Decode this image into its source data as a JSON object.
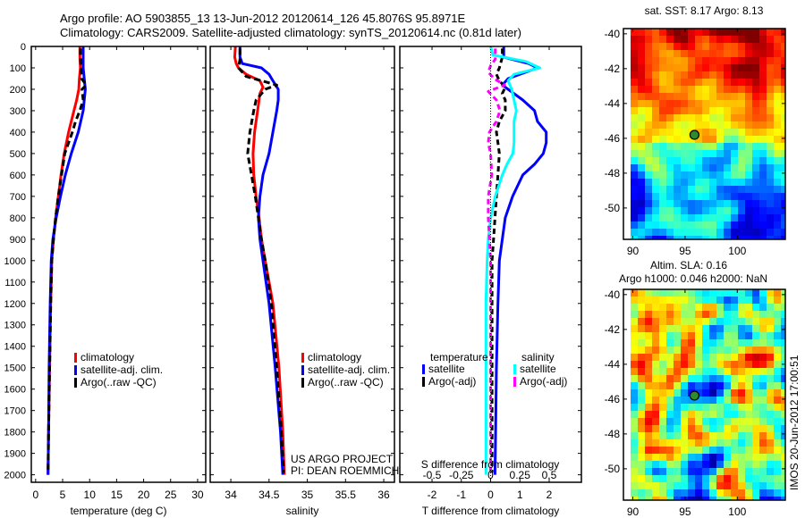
{
  "header": {
    "title_line1": "Argo profile: AO 5903855_13 13-Jun-2012 20120614_126 45.8076S 95.8971E",
    "title_line2": "Climatology: CARS2009. Satellite-adjusted climatology: synTS_20120614.nc (0.81d later)"
  },
  "credits": {
    "project": "US ARGO PROJECT",
    "pi": "PI: DEAN ROEMMICH",
    "stamp": "IMOS 20-Jun-2012 17:00:51"
  },
  "colors": {
    "climatology": "#ff0000",
    "satellite": "#0000ff",
    "argo": "#000000",
    "sal_satellite": "#00ffff",
    "sal_argo": "#ff00ff"
  },
  "chart_data": [
    {
      "type": "line",
      "name": "temperature-profile",
      "xlabel": "temperature (deg C)",
      "ylabel": "",
      "xlim": [
        -0.8,
        31.5
      ],
      "ylim": [
        2035,
        0
      ],
      "xticks": [
        0,
        5,
        10,
        15,
        20,
        25,
        30
      ],
      "xtick_labels": [
        "0",
        "5",
        "10",
        "15",
        "20",
        "25",
        "30"
      ],
      "yticks": [
        0,
        100,
        200,
        300,
        400,
        500,
        600,
        700,
        800,
        900,
        1000,
        1100,
        1200,
        1300,
        1400,
        1500,
        1600,
        1700,
        1800,
        1900,
        2000
      ],
      "ytick_labels": [
        "0",
        "100",
        "200",
        "300",
        "400",
        "500",
        "600",
        "700",
        "800",
        "900",
        "1000",
        "1100",
        "1200",
        "1300",
        "1400",
        "1500",
        "1600",
        "1700",
        "1800",
        "1900",
        "2000"
      ],
      "legend": [
        "climatology",
        "satellite-adj. clim.",
        "Argo(..raw -QC)"
      ],
      "series": [
        {
          "name": "climatology",
          "depth": [
            0,
            50,
            100,
            150,
            200,
            250,
            300,
            400,
            500,
            600,
            700,
            800,
            900,
            1000,
            1200,
            1500,
            1800,
            2000
          ],
          "values": [
            8.2,
            8.2,
            8.3,
            8.1,
            8.0,
            7.6,
            7.1,
            6.1,
            5.3,
            4.7,
            4.2,
            3.7,
            3.3,
            3.0,
            2.8,
            2.6,
            2.4,
            2.3
          ]
        },
        {
          "name": "satellite-adj. clim.",
          "depth": [
            0,
            50,
            100,
            150,
            200,
            250,
            300,
            400,
            500,
            600,
            700,
            800,
            900,
            1000,
            1200,
            1500,
            1800,
            2000
          ],
          "values": [
            8.8,
            8.8,
            8.8,
            9.0,
            9.2,
            9.0,
            8.8,
            7.9,
            6.6,
            5.5,
            4.6,
            3.8,
            3.2,
            2.9,
            2.7,
            2.5,
            2.4,
            2.3
          ]
        },
        {
          "name": "Argo(..raw -QC)",
          "depth": [
            10,
            50,
            100,
            150,
            180,
            200,
            250,
            300,
            350,
            400,
            500,
            600,
            700,
            800,
            900,
            1000,
            1200,
            1500,
            1800,
            1990
          ],
          "values": [
            8.3,
            8.3,
            8.4,
            8.5,
            9.4,
            8.6,
            8.8,
            8.2,
            7.4,
            6.8,
            5.4,
            4.8,
            4.2,
            3.7,
            3.3,
            3.0,
            2.8,
            2.6,
            2.4,
            2.3
          ]
        }
      ]
    },
    {
      "type": "line",
      "name": "salinity-profile",
      "xlabel": "salinity",
      "xlim": [
        33.73,
        36.14
      ],
      "ylim": [
        2035,
        0
      ],
      "xticks": [
        34,
        34.5,
        35,
        35.5,
        36
      ],
      "xtick_labels": [
        "34",
        "34.5",
        "35",
        "35.5",
        "36"
      ],
      "legend": [
        "climatology",
        "satellite-adj. clim.",
        "Argo(..raw -QC)"
      ],
      "series": [
        {
          "name": "climatology",
          "depth": [
            0,
            50,
            80,
            100,
            130,
            160,
            190,
            220,
            300,
            400,
            500,
            600,
            700,
            800,
            900,
            1000,
            1200,
            1500,
            1800,
            2000
          ],
          "values": [
            34.06,
            34.05,
            34.07,
            34.1,
            34.2,
            34.38,
            34.42,
            34.38,
            34.35,
            34.31,
            34.29,
            34.3,
            34.33,
            34.37,
            34.4,
            34.45,
            34.55,
            34.63,
            34.68,
            34.7
          ]
        },
        {
          "name": "satellite-adj. clim.",
          "depth": [
            0,
            50,
            80,
            100,
            130,
            160,
            200,
            250,
            300,
            400,
            500,
            600,
            700,
            800,
            900,
            1000,
            1200,
            1500,
            1800,
            2000
          ],
          "values": [
            34.12,
            34.12,
            34.15,
            34.4,
            34.5,
            34.55,
            34.62,
            34.62,
            34.6,
            34.55,
            34.5,
            34.42,
            34.38,
            34.36,
            34.38,
            34.42,
            34.5,
            34.58,
            34.65,
            34.68
          ]
        },
        {
          "name": "Argo(..raw -QC)",
          "depth": [
            10,
            60,
            100,
            140,
            180,
            200,
            250,
            300,
            400,
            500,
            600,
            700,
            800,
            900,
            1000,
            1200,
            1500,
            1800,
            1990
          ],
          "values": [
            34.12,
            34.12,
            34.1,
            34.2,
            34.6,
            34.45,
            34.33,
            34.3,
            34.25,
            34.22,
            34.27,
            34.32,
            34.36,
            34.4,
            34.45,
            34.53,
            34.6,
            34.66,
            34.69
          ]
        }
      ]
    },
    {
      "type": "line",
      "name": "difference-profile",
      "xlabel": "T difference from climatology",
      "x2label": "S difference from climatology",
      "xlim": [
        -3.1,
        3.1
      ],
      "x2lim": [
        -0.775,
        0.775
      ],
      "ylim": [
        2035,
        0
      ],
      "xticks": [
        -2,
        -1,
        0,
        1,
        2
      ],
      "xtick_labels": [
        "-2",
        "-1",
        "0",
        "1",
        "2"
      ],
      "x2ticks": [
        -0.5,
        -0.25,
        0,
        0.25,
        0.5
      ],
      "x2tick_labels": [
        "-0.5",
        "-0.25",
        "0",
        "0.25",
        "0.5"
      ],
      "legend_temperature_title": "temperature",
      "legend_salinity_title": "salinity",
      "legend": [
        "satellite",
        "Argo(-adj)",
        "satellite",
        "Argo(-adj)"
      ],
      "series": [
        {
          "name": "T satellite",
          "axis": "T",
          "depth": [
            0,
            50,
            80,
            100,
            130,
            150,
            180,
            200,
            250,
            300,
            350,
            400,
            450,
            500,
            550,
            600,
            700,
            800,
            900,
            1000,
            1200,
            1500,
            1800,
            2000
          ],
          "values": [
            0.45,
            0.45,
            1.3,
            1.6,
            1.0,
            0.6,
            0.4,
            0.6,
            1.1,
            1.5,
            1.6,
            1.9,
            1.9,
            1.8,
            1.5,
            1.1,
            0.75,
            0.5,
            0.4,
            0.3,
            0.25,
            0.2,
            0.17,
            0.15
          ]
        },
        {
          "name": "T Argo(-adj)",
          "axis": "T",
          "depth": [
            10,
            50,
            100,
            130,
            160,
            190,
            220,
            250,
            300,
            350,
            400,
            450,
            500,
            600,
            700,
            800,
            900,
            1000,
            1200,
            1500,
            1800,
            1990
          ],
          "values": [
            0.4,
            0.4,
            0.3,
            0.2,
            0.3,
            0.5,
            0.4,
            0.5,
            0.5,
            0.3,
            0.2,
            0.25,
            0.3,
            0.25,
            0.2,
            0.15,
            0.1,
            0.05,
            0.05,
            0.05,
            0.05,
            0.05
          ]
        },
        {
          "name": "S satellite",
          "axis": "S",
          "depth": [
            0,
            40,
            70,
            100,
            130,
            160,
            200,
            250,
            300,
            350,
            400,
            450,
            500,
            550,
            600,
            700,
            800,
            900,
            1000,
            1200,
            1500,
            1800,
            2000
          ],
          "values": [
            0.0,
            0.02,
            0.3,
            0.42,
            0.2,
            0.15,
            0.18,
            0.2,
            0.22,
            0.2,
            0.2,
            0.2,
            0.19,
            0.14,
            0.1,
            0.04,
            0.0,
            -0.02,
            -0.03,
            -0.04,
            -0.04,
            -0.04,
            -0.04
          ]
        },
        {
          "name": "S Argo(-adj)",
          "axis": "S",
          "depth": [
            10,
            60,
            90,
            120,
            150,
            180,
            210,
            250,
            300,
            350,
            400,
            450,
            500,
            600,
            700,
            800,
            900,
            1000,
            1200,
            1500,
            1800,
            1990
          ],
          "values": [
            0.04,
            0.04,
            0.0,
            -0.02,
            0.03,
            0.12,
            -0.02,
            0.05,
            0.08,
            0.05,
            -0.01,
            -0.02,
            0.0,
            0.01,
            -0.02,
            -0.02,
            -0.01,
            0.0,
            0.0,
            0.0,
            0.0,
            0.0
          ]
        }
      ]
    },
    {
      "type": "heatmap",
      "name": "sst-map",
      "title": "sat. SST: 8.17 Argo: 8.13",
      "xlim": [
        89.1,
        104.6
      ],
      "ylim": [
        -51.8,
        -39.7
      ],
      "xticks": [
        90,
        95,
        100
      ],
      "xtick_labels": [
        "90",
        "95",
        "100"
      ],
      "yticks": [
        -40,
        -42,
        -44,
        -46,
        -48,
        -50
      ],
      "ytick_labels": [
        "-40",
        "-42",
        "-44",
        "-46",
        "-48",
        "-50"
      ],
      "marker": {
        "lon": 95.9,
        "lat": -45.8
      }
    },
    {
      "type": "heatmap",
      "name": "sla-map",
      "title_line1": "Altim. SLA: 0.16",
      "title_line2": "Argo h1000: 0.046 h2000: NaN",
      "xlim": [
        89.1,
        104.6
      ],
      "ylim": [
        -51.8,
        -39.7
      ],
      "xticks": [
        90,
        95,
        100
      ],
      "xtick_labels": [
        "90",
        "95",
        "100"
      ],
      "yticks": [
        -40,
        -42,
        -44,
        -46,
        -48,
        -50
      ],
      "ytick_labels": [
        "-40",
        "-42",
        "-44",
        "-46",
        "-48",
        "-50"
      ],
      "marker": {
        "lon": 95.9,
        "lat": -45.8
      }
    }
  ]
}
